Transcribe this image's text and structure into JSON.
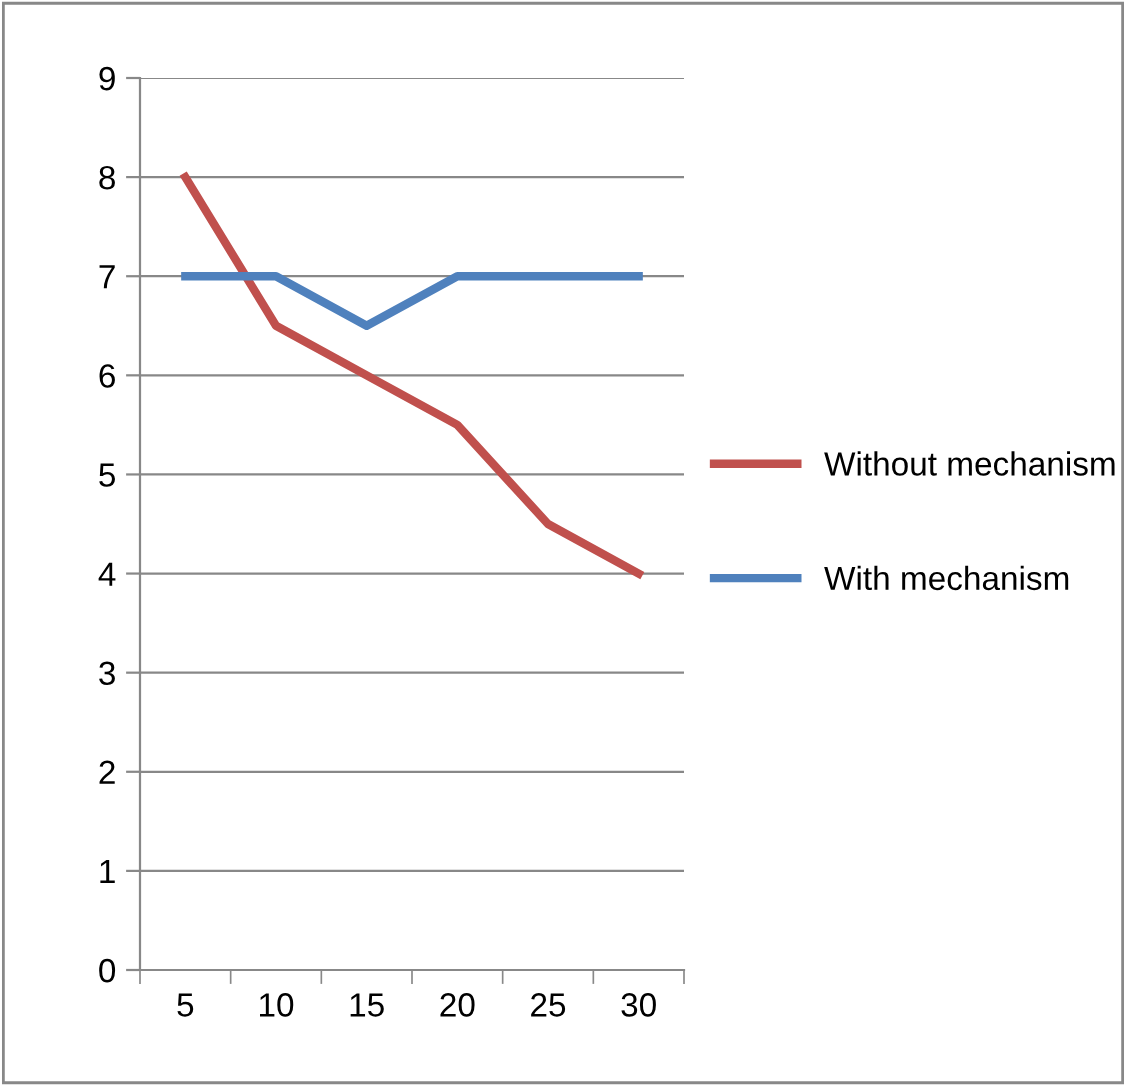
{
  "chart_data": {
    "type": "line",
    "categories": [
      "5",
      "10",
      "15",
      "20",
      "25",
      "30"
    ],
    "series": [
      {
        "name": "Without mechanism",
        "color": "#c0504d",
        "values": [
          8,
          6.5,
          6,
          5.5,
          4.5,
          4
        ]
      },
      {
        "name": "With mechanism",
        "color": "#4f81bd",
        "values": [
          7,
          7,
          6.5,
          7,
          7,
          7
        ]
      }
    ],
    "ylim": [
      0,
      9
    ],
    "yticks": [
      0,
      1,
      2,
      3,
      4,
      5,
      6,
      7,
      8,
      9
    ],
    "grid": "y",
    "legend": "right",
    "marker": "none",
    "line_style": "solid"
  }
}
